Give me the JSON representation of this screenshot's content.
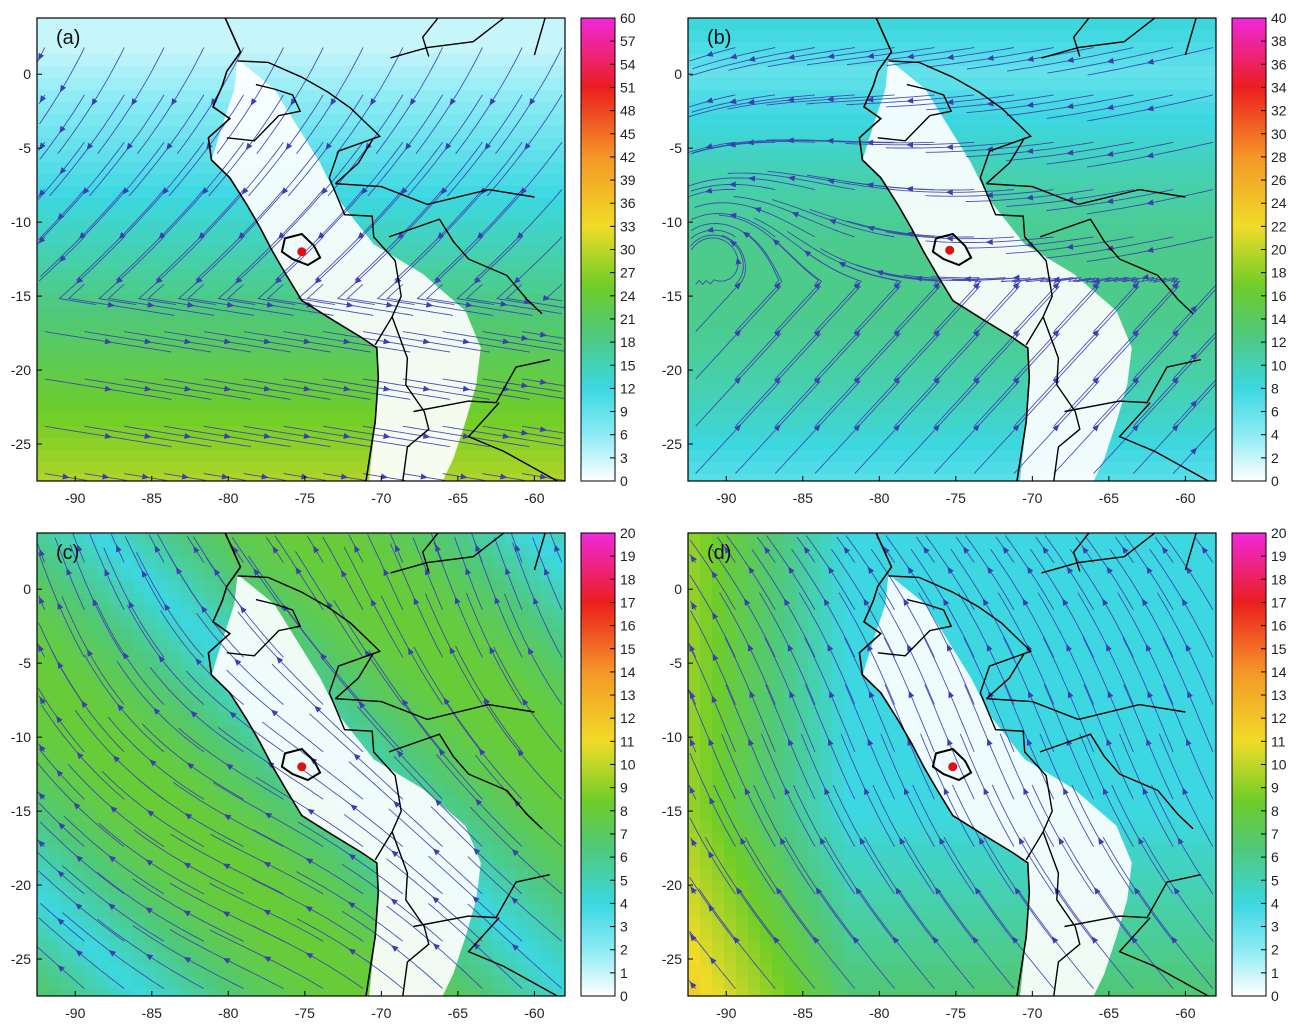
{
  "panels": [
    {
      "label": "(a)",
      "colorbar_ticks": [
        "60",
        "57",
        "54",
        "51",
        "48",
        "45",
        "42",
        "39",
        "36",
        "33",
        "30",
        "27",
        "24",
        "21",
        "18",
        "15",
        "12",
        "9",
        "6",
        "3",
        "0"
      ],
      "colorbar_max": 60,
      "marker_lon": -75.2,
      "marker_lat": -12.0
    },
    {
      "label": "(b)",
      "colorbar_ticks": [
        "40",
        "38",
        "36",
        "34",
        "32",
        "30",
        "28",
        "26",
        "24",
        "22",
        "20",
        "18",
        "16",
        "14",
        "12",
        "10",
        "8",
        "6",
        "4",
        "2",
        "0"
      ],
      "colorbar_max": 40,
      "marker_lon": -75.4,
      "marker_lat": -11.9
    },
    {
      "label": "(c)",
      "colorbar_ticks": [
        "20",
        "19",
        "18",
        "17",
        "16",
        "15",
        "14",
        "13",
        "12",
        "11",
        "10",
        "9",
        "8",
        "7",
        "6",
        "5",
        "4",
        "3",
        "2",
        "1",
        "0"
      ],
      "colorbar_max": 20,
      "marker_lon": -75.2,
      "marker_lat": -12.0
    },
    {
      "label": "(d)",
      "colorbar_ticks": [
        "20",
        "19",
        "18",
        "17",
        "16",
        "15",
        "14",
        "13",
        "12",
        "11",
        "10",
        "9",
        "8",
        "7",
        "6",
        "5",
        "4",
        "3",
        "2",
        "1",
        "0"
      ],
      "colorbar_max": 20,
      "marker_lon": -75.2,
      "marker_lat": -12.0
    }
  ],
  "axes": {
    "x_ticks": [
      "-90",
      "-85",
      "-80",
      "-75",
      "-70",
      "-65",
      "-60"
    ],
    "y_ticks": [
      "0",
      "-5",
      "-10",
      "-15",
      "-20",
      "-25"
    ],
    "x_range": [
      -92.5,
      -58
    ],
    "y_range": [
      -27.5,
      3.8
    ]
  },
  "colors": {
    "streamline": "#3b3fb0",
    "border": "#000000",
    "marker": "#e01010",
    "land_low": "#ffffff",
    "ocean": "#6fd6e4"
  }
}
